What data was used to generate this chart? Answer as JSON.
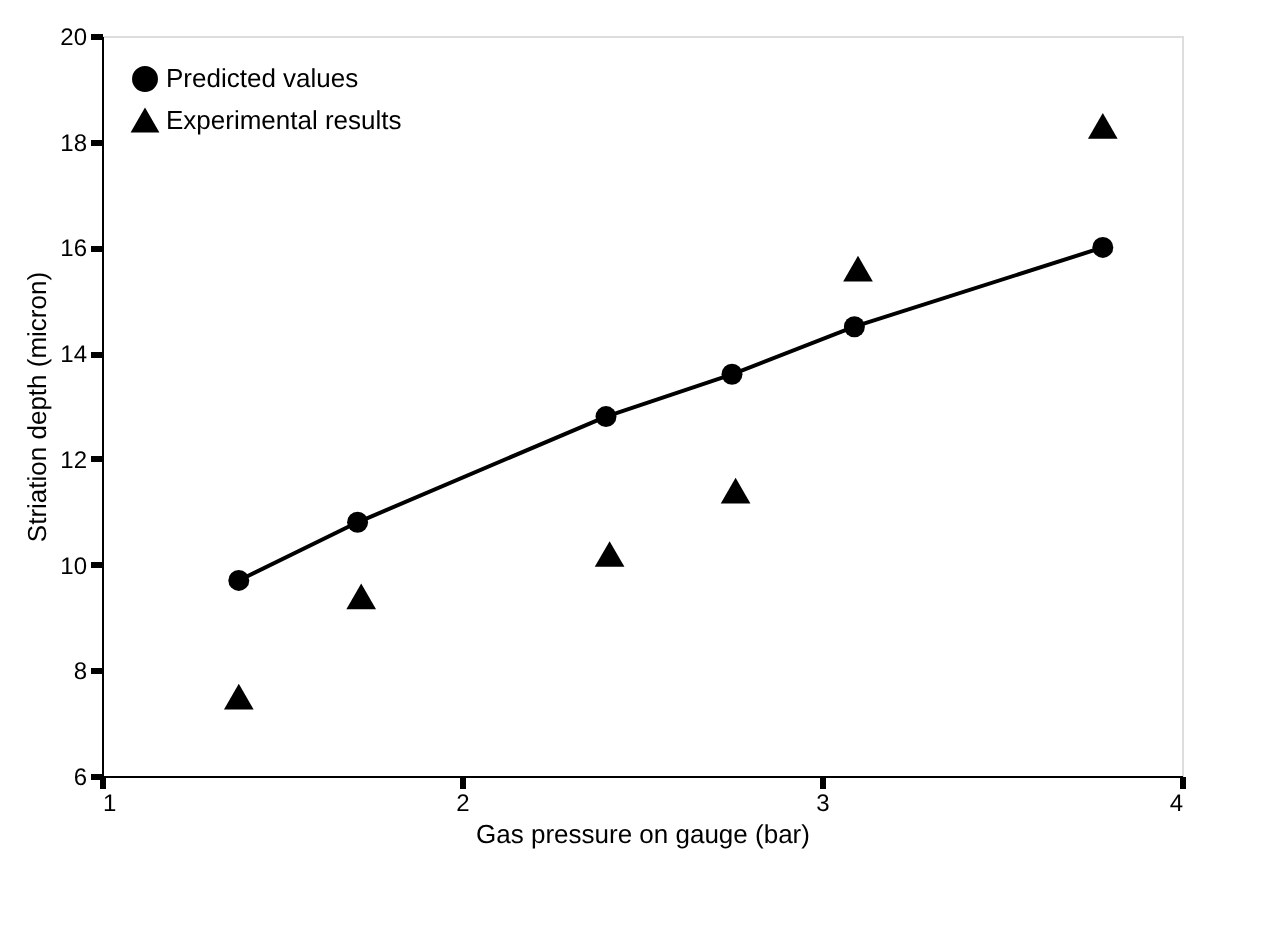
{
  "chart_data": {
    "type": "line",
    "xlabel": "Gas pressure on gauge (bar)",
    "ylabel": "Striation depth (micron)",
    "xlim": [
      1,
      4
    ],
    "xticks": [
      1,
      2,
      3,
      4
    ],
    "ylim": [
      6,
      20
    ],
    "yticks": [
      6,
      8,
      10,
      12,
      14,
      16,
      18,
      20
    ],
    "grid": false,
    "legend": "top left",
    "series": [
      {
        "name": "Predicted values",
        "type": "line",
        "marker": "circle",
        "line_style": "solid",
        "color": "#000000",
        "x": [
          1.38,
          1.71,
          2.4,
          2.75,
          3.09,
          3.78
        ],
        "values": [
          9.7,
          10.8,
          12.8,
          13.6,
          14.5,
          16.0
        ]
      },
      {
        "name": "Experimental results",
        "type": "scatter",
        "marker": "triangle",
        "color": "#000000",
        "x": [
          1.38,
          1.72,
          2.41,
          2.76,
          3.1,
          3.78
        ],
        "values": [
          7.5,
          9.4,
          10.2,
          11.4,
          15.6,
          18.3
        ]
      }
    ]
  }
}
